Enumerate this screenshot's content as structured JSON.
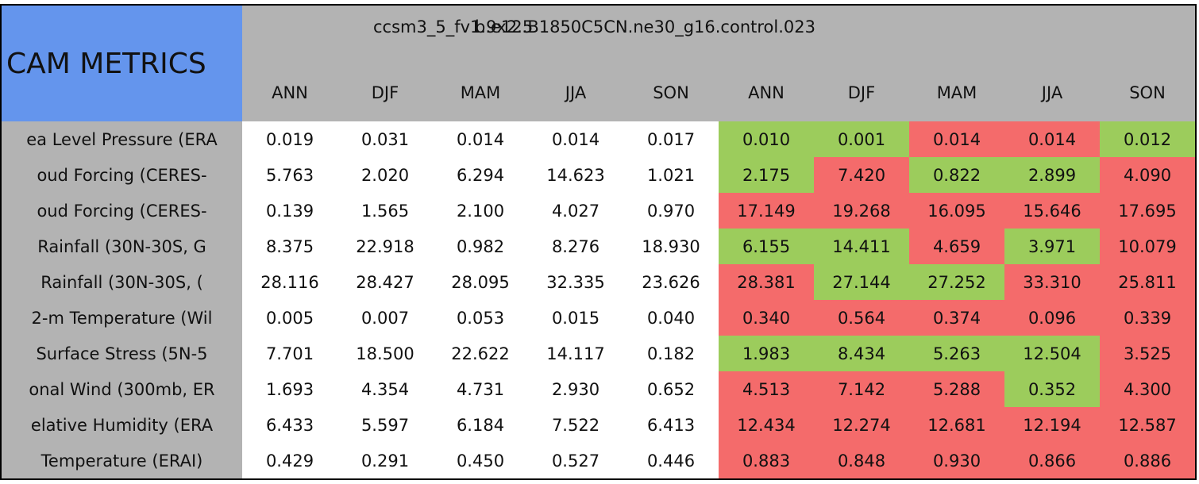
{
  "header": {
    "title": "CAM METRICS",
    "groups": [
      "ccsm3_5_fv1.9x2.5",
      "b.e12.B1850C5CN.ne30_g16.control.023"
    ],
    "seasons": [
      "ANN",
      "DJF",
      "MAM",
      "JJA",
      "SON",
      "ANN",
      "DJF",
      "MAM",
      "JJA",
      "SON"
    ]
  },
  "palette": {
    "G": "#9ccc5c",
    "R": "#f46b6b"
  },
  "table": {
    "rows": [
      {
        "label": "ea Level Pressure (ERA",
        "cells": [
          "0.019",
          "0.031",
          "0.014",
          "0.014",
          "0.017",
          "0.010",
          "0.001",
          "0.014",
          "0.014",
          "0.012"
        ],
        "colors": [
          "G",
          "G",
          "R",
          "R",
          "G"
        ]
      },
      {
        "label": "oud Forcing (CERES-",
        "cells": [
          "5.763",
          "2.020",
          "6.294",
          "14.623",
          "1.021",
          "2.175",
          "7.420",
          "0.822",
          "2.899",
          "4.090"
        ],
        "colors": [
          "G",
          "R",
          "G",
          "G",
          "R"
        ]
      },
      {
        "label": "oud Forcing (CERES-",
        "cells": [
          "0.139",
          "1.565",
          "2.100",
          "4.027",
          "0.970",
          "17.149",
          "19.268",
          "16.095",
          "15.646",
          "17.695"
        ],
        "colors": [
          "R",
          "R",
          "R",
          "R",
          "R"
        ]
      },
      {
        "label": "Rainfall (30N-30S, G",
        "cells": [
          "8.375",
          "22.918",
          "0.982",
          "8.276",
          "18.930",
          "6.155",
          "14.411",
          "4.659",
          "3.971",
          "10.079"
        ],
        "colors": [
          "G",
          "G",
          "R",
          "G",
          "R"
        ]
      },
      {
        "label": "Rainfall (30N-30S, (",
        "cells": [
          "28.116",
          "28.427",
          "28.095",
          "32.335",
          "23.626",
          "28.381",
          "27.144",
          "27.252",
          "33.310",
          "25.811"
        ],
        "colors": [
          "R",
          "G",
          "G",
          "R",
          "R"
        ]
      },
      {
        "label": "2-m Temperature (Wil",
        "cells": [
          "0.005",
          "0.007",
          "0.053",
          "0.015",
          "0.040",
          "0.340",
          "0.564",
          "0.374",
          "0.096",
          "0.339"
        ],
        "colors": [
          "R",
          "R",
          "R",
          "R",
          "R"
        ]
      },
      {
        "label": "Surface Stress (5N-5",
        "cells": [
          "7.701",
          "18.500",
          "22.622",
          "14.117",
          "0.182",
          "1.983",
          "8.434",
          "5.263",
          "12.504",
          "3.525"
        ],
        "colors": [
          "G",
          "G",
          "G",
          "G",
          "R"
        ]
      },
      {
        "label": "onal Wind (300mb, ER",
        "cells": [
          "1.693",
          "4.354",
          "4.731",
          "2.930",
          "0.652",
          "4.513",
          "7.142",
          "5.288",
          "0.352",
          "4.300"
        ],
        "colors": [
          "R",
          "R",
          "R",
          "G",
          "R"
        ]
      },
      {
        "label": "elative Humidity (ERA",
        "cells": [
          "6.433",
          "5.597",
          "6.184",
          "7.522",
          "6.413",
          "12.434",
          "12.274",
          "12.681",
          "12.194",
          "12.587"
        ],
        "colors": [
          "R",
          "R",
          "R",
          "R",
          "R"
        ]
      },
      {
        "label": "Temperature (ERAI)",
        "cells": [
          "0.429",
          "0.291",
          "0.450",
          "0.527",
          "0.446",
          "0.883",
          "0.848",
          "0.930",
          "0.866",
          "0.886"
        ],
        "colors": [
          "R",
          "R",
          "R",
          "R",
          "R"
        ]
      }
    ]
  }
}
